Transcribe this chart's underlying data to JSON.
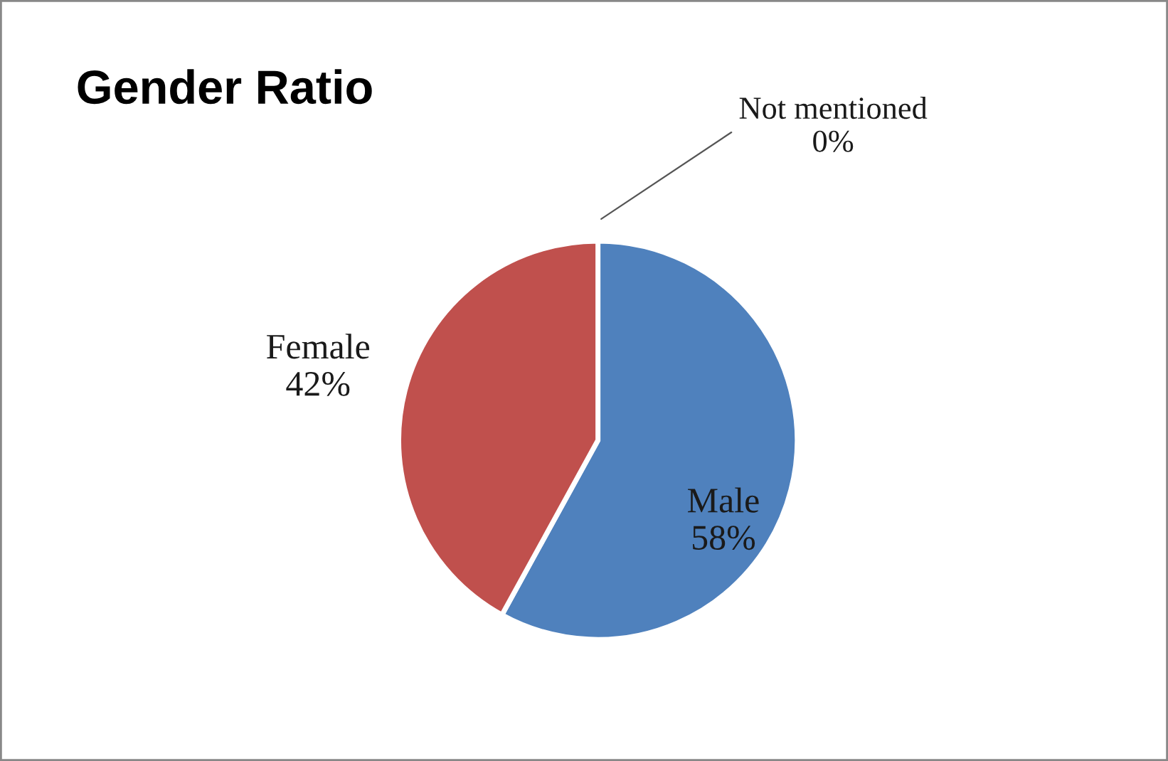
{
  "chart_data": {
    "type": "pie",
    "title": "Gender Ratio",
    "categories": [
      "Male",
      "Female",
      "Not mentioned"
    ],
    "values": [
      58,
      42,
      0
    ],
    "value_labels": [
      "58%",
      "42%",
      "0%"
    ],
    "colors": [
      "#4f81bd",
      "#c0504d",
      "#9bbb59"
    ],
    "legend": false
  }
}
